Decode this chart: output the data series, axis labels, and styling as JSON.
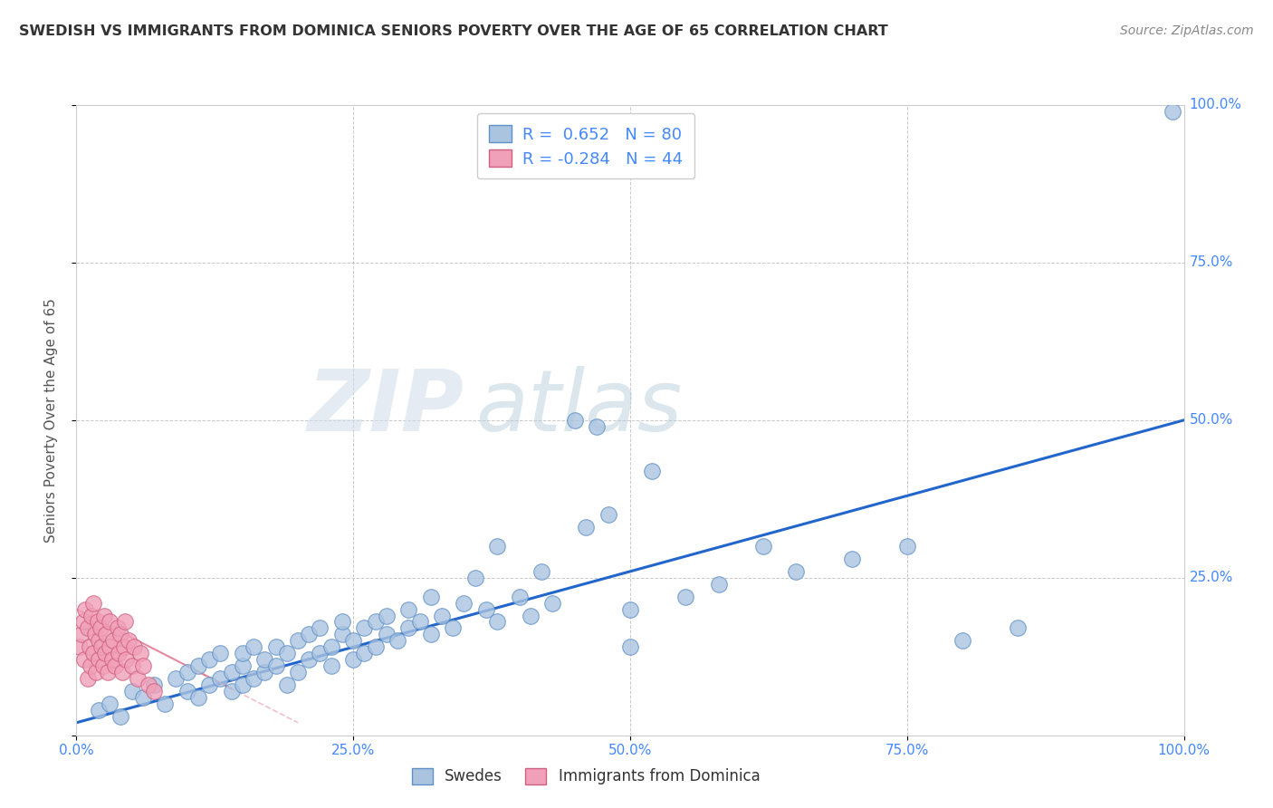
{
  "title": "SWEDISH VS IMMIGRANTS FROM DOMINICA SENIORS POVERTY OVER THE AGE OF 65 CORRELATION CHART",
  "source": "Source: ZipAtlas.com",
  "ylabel": "Seniors Poverty Over the Age of 65",
  "xlim": [
    0,
    1.0
  ],
  "ylim": [
    0,
    1.0
  ],
  "xticks": [
    0.0,
    0.25,
    0.5,
    0.75,
    1.0
  ],
  "xticklabels": [
    "0.0%",
    "25.0%",
    "50.0%",
    "75.0%",
    "100.0%"
  ],
  "ytick_values": [
    0.25,
    0.5,
    0.75,
    1.0
  ],
  "ytick_labels": [
    "25.0%",
    "50.0%",
    "75.0%",
    "100.0%"
  ],
  "swedes_color": "#aac4e0",
  "dominica_color": "#f0a0b8",
  "swedes_edge": "#6090c8",
  "dominica_edge": "#d06080",
  "trend_swedes_color": "#2266cc",
  "trend_dominica_color": "#e06080",
  "R_swedes": 0.652,
  "N_swedes": 80,
  "R_dominica": -0.284,
  "N_dominica": 44,
  "watermark_zip": "ZIP",
  "watermark_atlas": "atlas",
  "background_color": "#ffffff",
  "grid_color": "#bbbbbb",
  "tick_color": "#4488ff",
  "ylabel_color": "#555555",
  "title_color": "#333333",
  "source_color": "#888888",
  "swedes_x": [
    0.02,
    0.03,
    0.04,
    0.05,
    0.06,
    0.07,
    0.08,
    0.09,
    0.1,
    0.1,
    0.11,
    0.11,
    0.12,
    0.12,
    0.13,
    0.13,
    0.14,
    0.14,
    0.15,
    0.15,
    0.15,
    0.16,
    0.16,
    0.17,
    0.17,
    0.18,
    0.18,
    0.19,
    0.19,
    0.2,
    0.2,
    0.21,
    0.21,
    0.22,
    0.22,
    0.23,
    0.23,
    0.24,
    0.24,
    0.25,
    0.25,
    0.26,
    0.26,
    0.27,
    0.27,
    0.28,
    0.28,
    0.29,
    0.3,
    0.3,
    0.31,
    0.32,
    0.33,
    0.34,
    0.35,
    0.37,
    0.38,
    0.4,
    0.41,
    0.43,
    0.45,
    0.47,
    0.5,
    0.52,
    0.55,
    0.58,
    0.62,
    0.65,
    0.7,
    0.75,
    0.8,
    0.85,
    0.48,
    0.38,
    0.32,
    0.36,
    0.42,
    0.46,
    0.5,
    0.99
  ],
  "swedes_y": [
    0.04,
    0.05,
    0.03,
    0.07,
    0.06,
    0.08,
    0.05,
    0.09,
    0.07,
    0.1,
    0.06,
    0.11,
    0.08,
    0.12,
    0.09,
    0.13,
    0.1,
    0.07,
    0.11,
    0.08,
    0.13,
    0.09,
    0.14,
    0.1,
    0.12,
    0.11,
    0.14,
    0.13,
    0.08,
    0.15,
    0.1,
    0.12,
    0.16,
    0.13,
    0.17,
    0.14,
    0.11,
    0.16,
    0.18,
    0.15,
    0.12,
    0.17,
    0.13,
    0.18,
    0.14,
    0.16,
    0.19,
    0.15,
    0.17,
    0.2,
    0.18,
    0.16,
    0.19,
    0.17,
    0.21,
    0.2,
    0.18,
    0.22,
    0.19,
    0.21,
    0.5,
    0.49,
    0.2,
    0.42,
    0.22,
    0.24,
    0.3,
    0.26,
    0.28,
    0.3,
    0.15,
    0.17,
    0.35,
    0.3,
    0.22,
    0.25,
    0.26,
    0.33,
    0.14,
    0.99
  ],
  "dominica_x": [
    0.003,
    0.005,
    0.006,
    0.007,
    0.008,
    0.01,
    0.01,
    0.012,
    0.013,
    0.014,
    0.015,
    0.015,
    0.017,
    0.018,
    0.019,
    0.02,
    0.02,
    0.022,
    0.023,
    0.024,
    0.025,
    0.026,
    0.027,
    0.028,
    0.03,
    0.03,
    0.032,
    0.033,
    0.035,
    0.037,
    0.038,
    0.04,
    0.041,
    0.043,
    0.044,
    0.045,
    0.047,
    0.05,
    0.052,
    0.055,
    0.058,
    0.06,
    0.065,
    0.07
  ],
  "dominica_y": [
    0.14,
    0.16,
    0.18,
    0.12,
    0.2,
    0.09,
    0.17,
    0.14,
    0.11,
    0.19,
    0.13,
    0.21,
    0.16,
    0.1,
    0.18,
    0.15,
    0.12,
    0.17,
    0.14,
    0.11,
    0.19,
    0.13,
    0.16,
    0.1,
    0.14,
    0.18,
    0.12,
    0.15,
    0.11,
    0.17,
    0.13,
    0.16,
    0.1,
    0.14,
    0.18,
    0.12,
    0.15,
    0.11,
    0.14,
    0.09,
    0.13,
    0.11,
    0.08,
    0.07
  ]
}
